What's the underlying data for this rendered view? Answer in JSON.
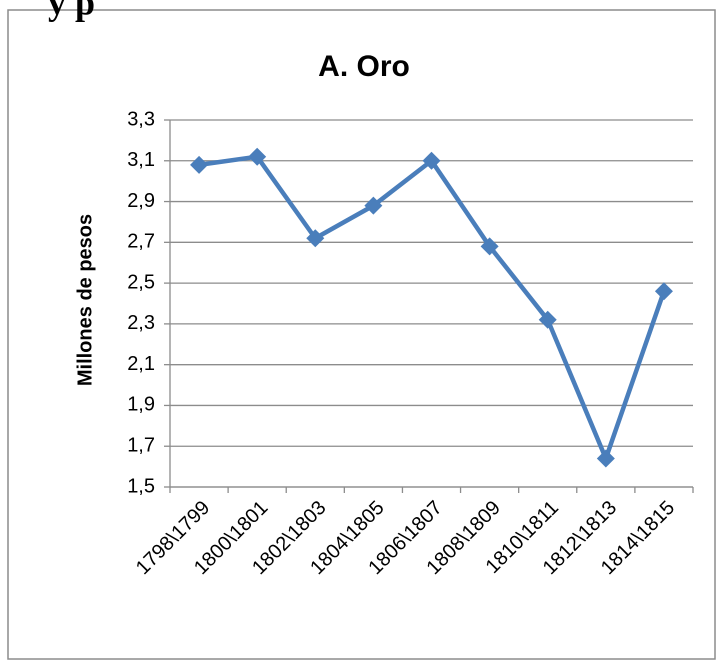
{
  "header": {
    "text": "y p"
  },
  "chart_data": {
    "type": "line",
    "title": "A. Oro",
    "ylabel": "Millones de pesos",
    "categories": [
      "1798\\1799",
      "1800\\1801",
      "1802\\1803",
      "1804\\1805",
      "1806\\1807",
      "1808\\1809",
      "1810\\1811",
      "1812\\1813",
      "1814\\1815"
    ],
    "series": [
      {
        "name": "Oro",
        "color": "#4a7ebb",
        "values": [
          3.08,
          3.12,
          2.72,
          2.88,
          3.1,
          2.68,
          2.32,
          1.64,
          2.46
        ]
      }
    ],
    "ylim": [
      1.5,
      3.3
    ],
    "yticks": [
      {
        "value": 1.5,
        "label": "1,5"
      },
      {
        "value": 1.7,
        "label": "1,7"
      },
      {
        "value": 1.9,
        "label": "1,9"
      },
      {
        "value": 2.1,
        "label": "2,1"
      },
      {
        "value": 2.3,
        "label": "2,3"
      },
      {
        "value": 2.5,
        "label": "2,5"
      },
      {
        "value": 2.7,
        "label": "2,7"
      },
      {
        "value": 2.9,
        "label": "2,9"
      },
      {
        "value": 3.1,
        "label": "3,1"
      },
      {
        "value": 3.3,
        "label": "3,3"
      }
    ],
    "grid": true
  }
}
